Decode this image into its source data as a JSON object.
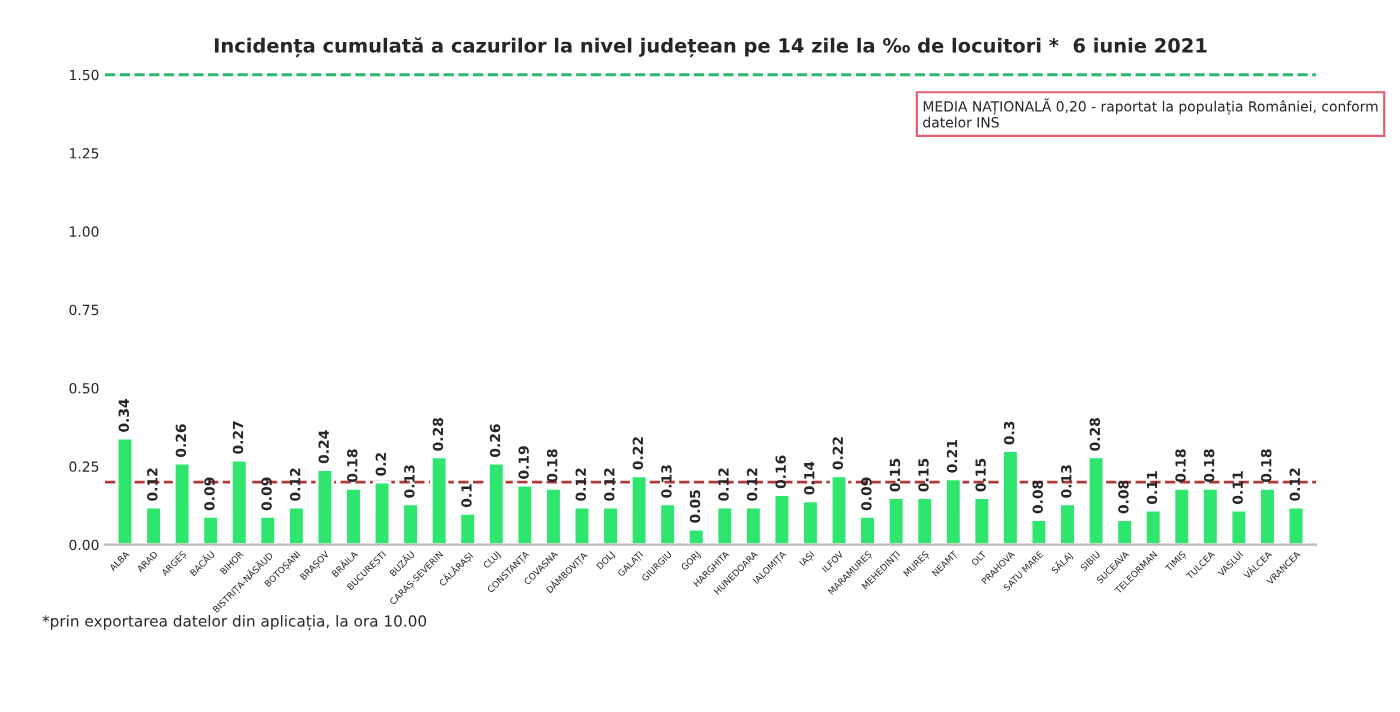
{
  "chart_data": {
    "type": "bar",
    "title": "Incidența cumulată a cazurilor la nivel județean pe 14 zile la ‰ de locuitori *  6 iunie 2021",
    "categories": [
      "ALBA",
      "ARAD",
      "ARGEȘ",
      "BACĂU",
      "BIHOR",
      "BISTRIȚA-NĂSĂUD",
      "BOTOȘANI",
      "BRAȘOV",
      "BRĂILA",
      "BUCUREȘTI",
      "BUZĂU",
      "CARAȘ-SEVERIN",
      "CĂLĂRAȘI",
      "CLUJ",
      "CONSTANȚA",
      "COVASNA",
      "DÂMBOVIȚA",
      "DOLJ",
      "GALAȚI",
      "GIURGIU",
      "GORJ",
      "HARGHITA",
      "HUNEDOARA",
      "IALOMIȚA",
      "IAȘI",
      "ILFOV",
      "MARAMUREȘ",
      "MEHEDINȚI",
      "MUREȘ",
      "NEAMȚ",
      "OLT",
      "PRAHOVA",
      "SATU MARE",
      "SĂLAJ",
      "SIBIU",
      "SUCEAVA",
      "TELEORMAN",
      "TIMIȘ",
      "TULCEA",
      "VASLUI",
      "VÂLCEA",
      "VRANCEA"
    ],
    "values": [
      0.34,
      0.12,
      0.26,
      0.09,
      0.27,
      0.09,
      0.12,
      0.24,
      0.18,
      0.2,
      0.13,
      0.28,
      0.1,
      0.26,
      0.19,
      0.18,
      0.12,
      0.12,
      0.22,
      0.13,
      0.05,
      0.12,
      0.12,
      0.16,
      0.14,
      0.22,
      0.09,
      0.15,
      0.15,
      0.21,
      0.15,
      0.3,
      0.08,
      0.13,
      0.28,
      0.08,
      0.11,
      0.18,
      0.18,
      0.11,
      0.18,
      0.12
    ],
    "color": "#2ee66e",
    "data_labels": true,
    "ylim": [
      0,
      1.5
    ],
    "yticks": [
      {
        "value": 0,
        "label": "0.00"
      },
      {
        "value": 0.25,
        "label": "0.25"
      },
      {
        "value": 0.5,
        "label": "0.50"
      },
      {
        "value": 0.75,
        "label": "0.75"
      },
      {
        "value": 1.0,
        "label": "1.00"
      },
      {
        "value": 1.25,
        "label": "1.25"
      },
      {
        "value": 1.5,
        "label": "1.50"
      }
    ],
    "grid": false,
    "ref_lines": [
      {
        "axis": "y",
        "value": 0.2,
        "color": "#b03a3a",
        "line_style": "dashed"
      },
      {
        "axis": "y",
        "value": 1.5,
        "color": "#2eb86e",
        "line_style": "dashed"
      }
    ],
    "annotations": [
      "MEDIA NAȚIONALĂ 0,20 - raportat la populația României, conform datelor INS",
      "*prin exportarea datelor din aplicația, la ora 10.00"
    ]
  }
}
